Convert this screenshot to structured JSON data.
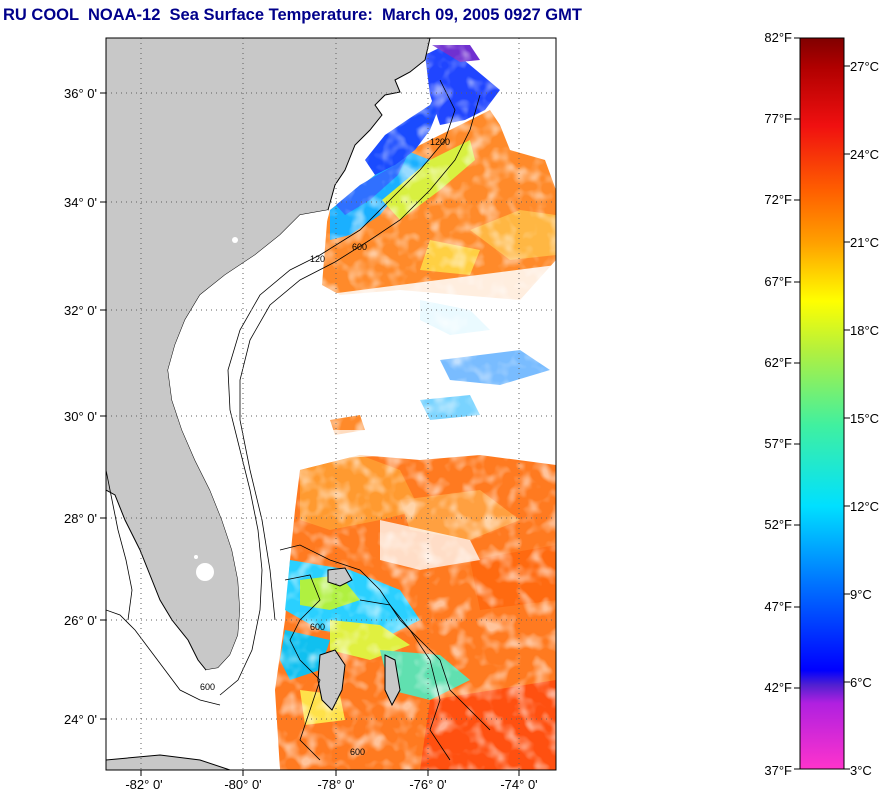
{
  "title": "RU COOL  NOAA-12  Sea Surface Temperature:  March 09, 2005 0927 GMT",
  "map": {
    "lat_ticks": [
      "36° 0'",
      "34° 0'",
      "32° 0'",
      "30° 0'",
      "28° 0'",
      "26° 0'",
      "24° 0'"
    ],
    "lon_ticks": [
      "-82° 0'",
      "-80° 0'",
      "-78° 0'",
      "-76° 0'",
      "-74° 0'"
    ],
    "isobath_labels": [
      "600",
      "120",
      "1200"
    ],
    "colors": {
      "land": "#c8c8c8",
      "cloud_or_nodata": "#ffffff",
      "coastline": "#000000",
      "grid": "#606060"
    }
  },
  "colorbar": {
    "fahrenheit_labels": [
      "82°F",
      "77°F",
      "72°F",
      "67°F",
      "62°F",
      "57°F",
      "52°F",
      "47°F",
      "42°F",
      "37°F"
    ],
    "celsius_labels": [
      "27°C",
      "24°C",
      "21°C",
      "18°C",
      "15°C",
      "12°C",
      "9°C",
      "6°C",
      "3°C"
    ],
    "range_f": [
      37,
      82
    ],
    "range_c": [
      3,
      28
    ]
  }
}
